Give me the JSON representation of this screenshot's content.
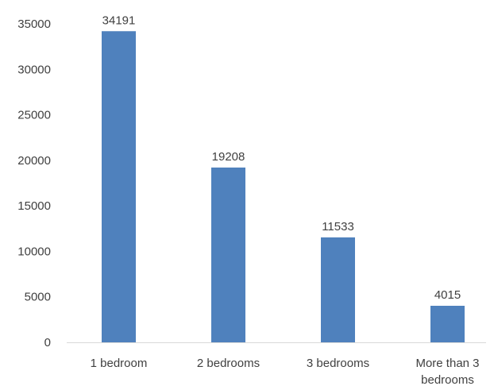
{
  "chart_data": {
    "type": "bar",
    "categories": [
      "1 bedroom",
      "2 bedrooms",
      "3 bedrooms",
      "More than 3 bedrooms"
    ],
    "category_label_lines": [
      [
        "1 bedroom"
      ],
      [
        "2 bedrooms"
      ],
      [
        "3 bedrooms"
      ],
      [
        "More than 3",
        "bedrooms"
      ]
    ],
    "values": [
      34191,
      19208,
      11533,
      4015
    ],
    "data_labels": [
      "34191",
      "19208",
      "11533",
      "4015"
    ],
    "yticks": [
      0,
      5000,
      10000,
      15000,
      20000,
      25000,
      30000,
      35000
    ],
    "ylim": [
      0,
      35000
    ],
    "title": "",
    "xlabel": "",
    "ylabel": "",
    "grid": false,
    "legend": "none",
    "bar_color": "#4f81bd"
  }
}
